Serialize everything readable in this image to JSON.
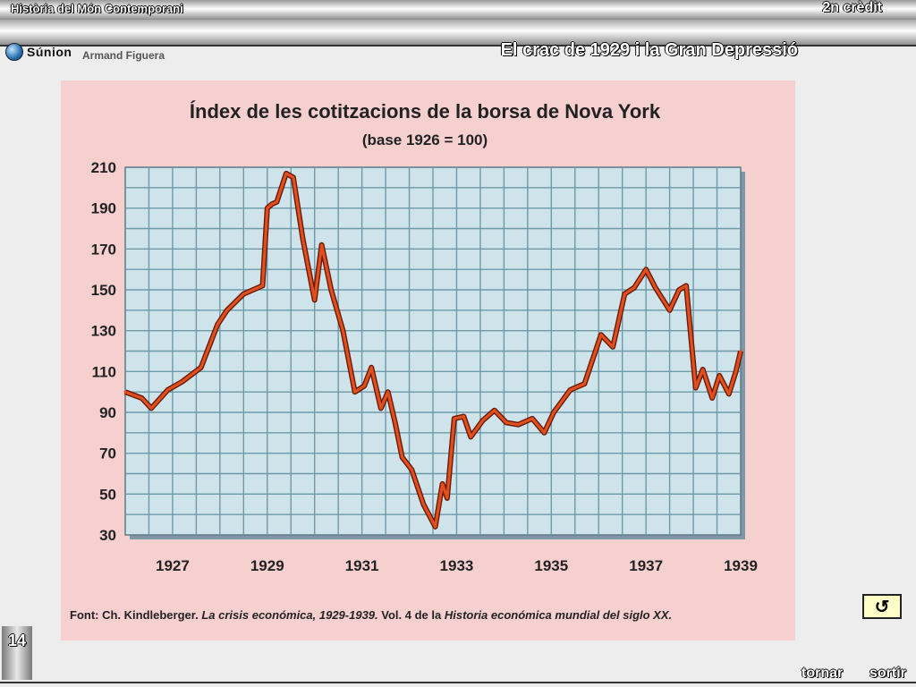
{
  "header": {
    "course": "Història del Món Contemporani",
    "credit": "2n crèdit",
    "logo_text": "Súnion",
    "author": "Armand Figuera",
    "page_title": "El crac de 1929 i la Gran Depressió",
    "logo_icon": "globe-icon"
  },
  "chart_data": {
    "type": "line",
    "title": "Índex de les cotitzacions de la borsa de Nova York",
    "subtitle": "(base 1926 = 100)",
    "xlabel": "",
    "ylabel": "",
    "xlim": [
      1926.0,
      1939.0
    ],
    "ylim": [
      30,
      210
    ],
    "yticks": [
      30,
      50,
      70,
      90,
      110,
      130,
      150,
      170,
      190,
      210
    ],
    "xticks": [
      1927,
      1929,
      1931,
      1933,
      1935,
      1937,
      1939
    ],
    "grid": true,
    "line_color": "#e0501e",
    "series": [
      {
        "name": "",
        "x": [
          1926.0,
          1926.35,
          1926.55,
          1926.9,
          1927.2,
          1927.6,
          1927.95,
          1928.15,
          1928.5,
          1928.9,
          1929.0,
          1929.1,
          1929.2,
          1929.4,
          1929.55,
          1929.75,
          1930.0,
          1930.15,
          1930.35,
          1930.6,
          1930.85,
          1931.05,
          1931.2,
          1931.4,
          1931.55,
          1931.7,
          1931.85,
          1932.05,
          1932.3,
          1932.55,
          1932.7,
          1932.8,
          1932.95,
          1933.15,
          1933.3,
          1933.55,
          1933.8,
          1934.05,
          1934.3,
          1934.6,
          1934.85,
          1935.05,
          1935.4,
          1935.7,
          1936.05,
          1936.3,
          1936.55,
          1936.75,
          1937.0,
          1937.2,
          1937.5,
          1937.7,
          1937.85,
          1938.05,
          1938.2,
          1938.4,
          1938.55,
          1938.75,
          1938.9,
          1939.0
        ],
        "y": [
          100,
          97,
          92,
          101,
          105,
          112,
          133,
          140,
          148,
          152,
          190,
          192,
          193,
          207,
          205,
          175,
          145,
          172,
          150,
          130,
          100,
          103,
          112,
          92,
          100,
          85,
          68,
          62,
          45,
          34,
          55,
          48,
          87,
          88,
          78,
          86,
          91,
          85,
          84,
          87,
          80,
          90,
          101,
          104,
          128,
          122,
          148,
          151,
          160,
          151,
          140,
          150,
          152,
          102,
          111,
          97,
          108,
          99,
          110,
          120
        ]
      }
    ],
    "source_prefix": "Font: Ch. Kindleberger.",
    "source_title": "La crisis económica, 1929-1939.",
    "source_mid": "Vol. 4 de la",
    "source_work": "Historia económica mundial del siglo XX."
  },
  "slide": {
    "number": "14"
  },
  "nav": {
    "back_icon": "↺",
    "tornar": "tornar",
    "sortir": "sortir"
  }
}
